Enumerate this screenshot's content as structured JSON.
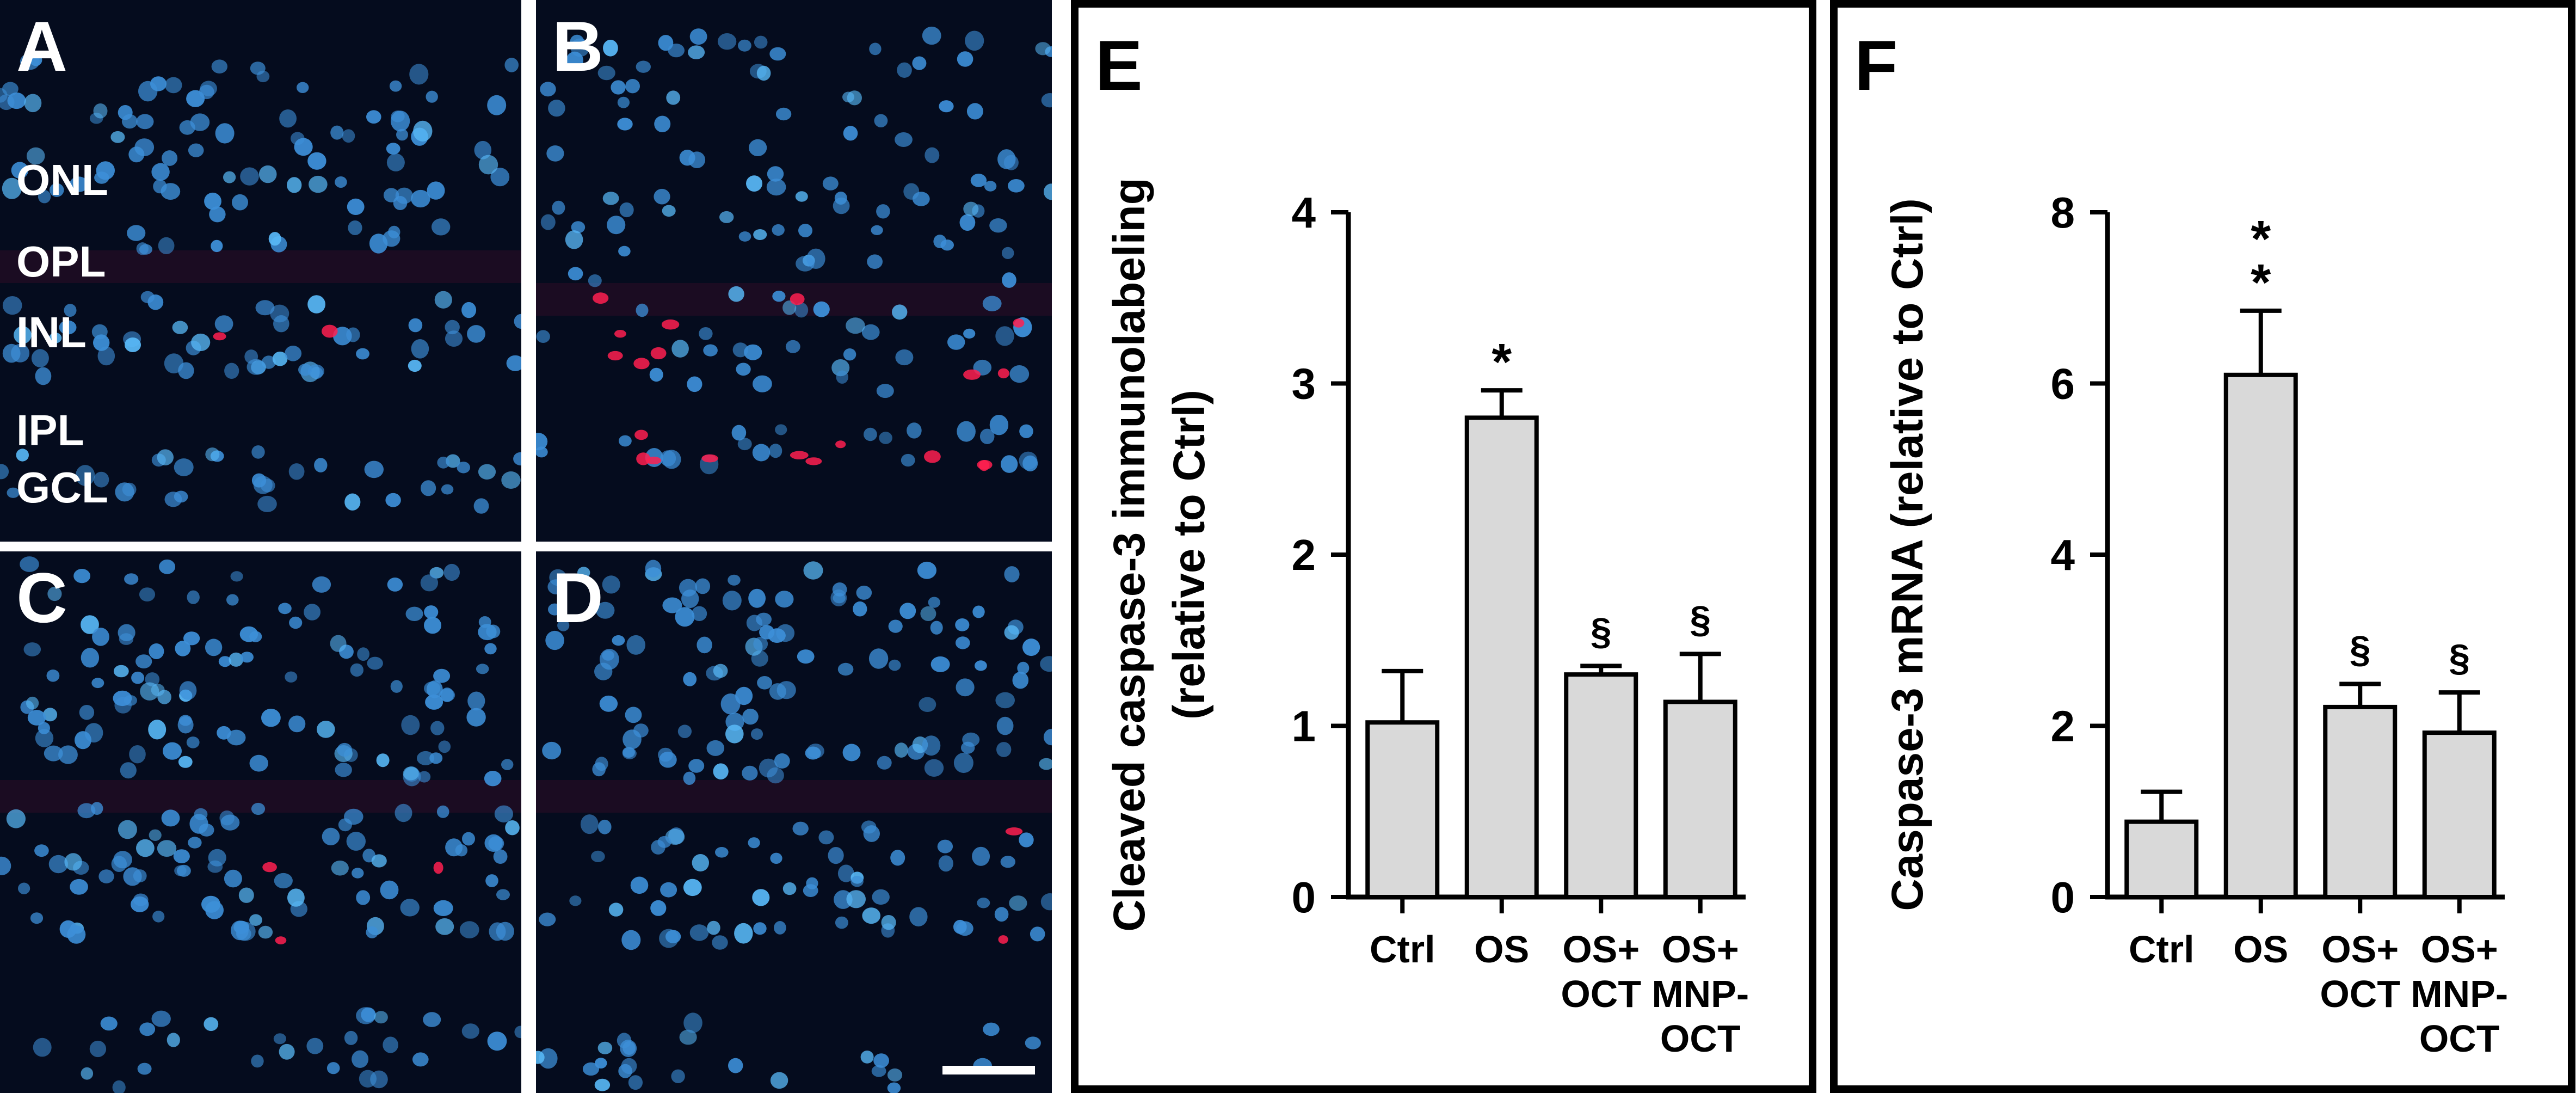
{
  "micrographs": [
    {
      "letter": "A",
      "layers": [
        "ONL",
        "OPL",
        "INL",
        "IPL",
        "GCL"
      ],
      "red_spots": 2,
      "scale_bar": false
    },
    {
      "letter": "B",
      "layers": [],
      "red_spots": 20,
      "scale_bar": false
    },
    {
      "letter": "C",
      "layers": [],
      "red_spots": 3,
      "scale_bar": false
    },
    {
      "letter": "D",
      "layers": [],
      "red_spots": 2,
      "scale_bar": true
    }
  ],
  "colors": {
    "nucleus": "#3d8fd8",
    "nucleus_bright": "#58b8f6",
    "background": "#050c1e",
    "red_signal": "#ff2050",
    "bar_fill": "#d9d9d9"
  },
  "chart_data": [
    {
      "type": "bar",
      "panel_letter": "E",
      "categories": [
        "Ctrl",
        "OS",
        "OS+ OCT",
        "OS+ MNP- OCT"
      ],
      "category_lines": [
        [
          "Ctrl"
        ],
        [
          "OS"
        ],
        [
          "OS+",
          "OCT"
        ],
        [
          "OS+",
          "MNP-",
          "OCT"
        ]
      ],
      "values": [
        1.02,
        2.8,
        1.3,
        1.14
      ],
      "errors": [
        0.3,
        0.16,
        0.05,
        0.28
      ],
      "significance": [
        "",
        "*",
        "§",
        "§"
      ],
      "ylabel_lines": [
        "Cleaved caspase-3 immunolabeling",
        "(relative to Ctrl)"
      ],
      "ylim": [
        0,
        4
      ],
      "yticks": [
        0,
        1,
        2,
        3,
        4
      ],
      "grid": false
    },
    {
      "type": "bar",
      "panel_letter": "F",
      "categories": [
        "Ctrl",
        "OS",
        "OS+ OCT",
        "OS+ MNP- OCT"
      ],
      "category_lines": [
        [
          "Ctrl"
        ],
        [
          "OS"
        ],
        [
          "OS+",
          "OCT"
        ],
        [
          "OS+",
          "MNP-",
          "OCT"
        ]
      ],
      "values": [
        0.88,
        6.1,
        2.22,
        1.92
      ],
      "errors": [
        0.35,
        0.75,
        0.27,
        0.47
      ],
      "significance": [
        "",
        "*\n*",
        "§",
        "§"
      ],
      "ylabel_lines": [
        "Caspase-3 mRNA (relative to Ctrl)"
      ],
      "ylim": [
        0,
        8
      ],
      "yticks": [
        0,
        2,
        4,
        6,
        8
      ],
      "grid": false
    }
  ]
}
